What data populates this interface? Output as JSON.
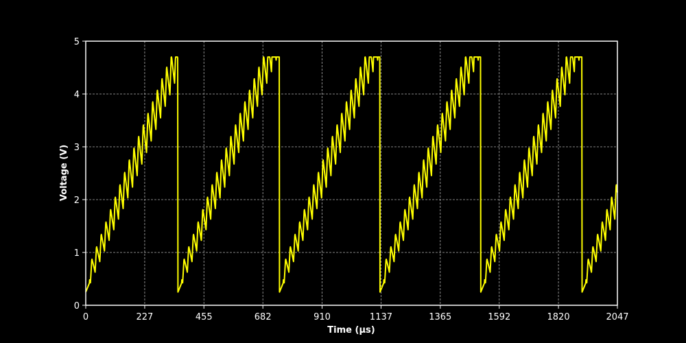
{
  "chart_data": {
    "type": "line",
    "title": "",
    "xlabel": "Time (µs)",
    "ylabel": "Voltage (V)",
    "xlim": [
      0,
      2047
    ],
    "ylim": [
      0,
      5
    ],
    "x_ticks": [
      0,
      227,
      455,
      682,
      910,
      1137,
      1365,
      1592,
      1820,
      2047
    ],
    "y_ticks": [
      0,
      1,
      2,
      3,
      4,
      5
    ],
    "grid": true,
    "background": "#000000",
    "foreground": "#ffffff",
    "series": [
      {
        "color": "#ffff00",
        "description": "sawtooth ramp with superimposed oscillation",
        "ramp_start": 0.4,
        "ramp_end": 4.7,
        "ripple_amplitude": 0.35,
        "ripple_period": 18,
        "segments": [
          {
            "x_start": 0,
            "x_end": 354
          },
          {
            "x_start": 355,
            "x_end": 745
          },
          {
            "x_start": 746,
            "x_end": 1132
          },
          {
            "x_start": 1133,
            "x_end": 1520
          },
          {
            "x_start": 1521,
            "x_end": 1910
          },
          {
            "x_start": 1911,
            "x_end": 2047
          }
        ]
      }
    ]
  }
}
